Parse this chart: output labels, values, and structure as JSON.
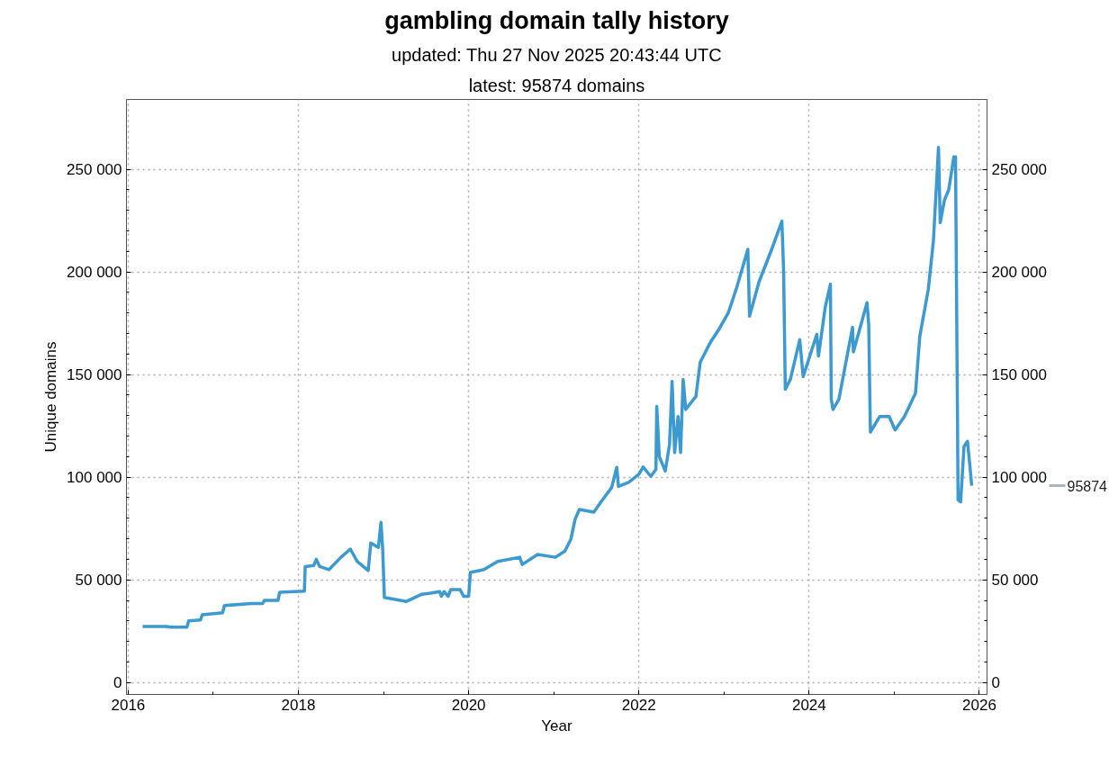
{
  "chart_data": {
    "type": "line",
    "title": "gambling domain tally history",
    "subtitle": "updated: Thu 27 Nov 2025 20:43:44 UTC",
    "xlabel": "Year",
    "ylabel": "Unique domains",
    "x": [
      2016.17,
      2016.45,
      2016.5,
      2016.69,
      2016.71,
      2016.85,
      2016.87,
      2017.11,
      2017.13,
      2017.45,
      2017.58,
      2017.6,
      2017.76,
      2017.78,
      2018.07,
      2018.08,
      2018.18,
      2018.21,
      2018.25,
      2018.36,
      2018.5,
      2018.61,
      2018.69,
      2018.82,
      2018.85,
      2018.94,
      2018.97,
      2018.99,
      2019.01,
      2019.27,
      2019.45,
      2019.55,
      2019.66,
      2019.68,
      2019.71,
      2019.76,
      2019.79,
      2019.9,
      2019.94,
      2020.0,
      2020.02,
      2020.18,
      2020.34,
      2020.6,
      2020.63,
      2020.81,
      2021.02,
      2021.13,
      2021.2,
      2021.25,
      2021.3,
      2021.47,
      2021.55,
      2021.68,
      2021.74,
      2021.76,
      2021.88,
      2022.0,
      2022.05,
      2022.14,
      2022.2,
      2022.21,
      2022.24,
      2022.31,
      2022.36,
      2022.39,
      2022.42,
      2022.46,
      2022.49,
      2022.52,
      2022.55,
      2022.67,
      2022.72,
      2022.84,
      2022.94,
      2023.05,
      2023.15,
      2023.28,
      2023.3,
      2023.41,
      2023.56,
      2023.68,
      2023.7,
      2023.72,
      2023.78,
      2023.89,
      2023.93,
      2024.09,
      2024.11,
      2024.19,
      2024.25,
      2024.26,
      2024.28,
      2024.35,
      2024.51,
      2024.52,
      2024.68,
      2024.7,
      2024.72,
      2024.83,
      2024.94,
      2025.01,
      2025.12,
      2025.25,
      2025.3,
      2025.4,
      2025.46,
      2025.52,
      2025.54,
      2025.59,
      2025.64,
      2025.7,
      2025.72,
      2025.75,
      2025.78,
      2025.82,
      2025.86,
      2025.89,
      2025.91
    ],
    "series": [
      {
        "color": "#3d9ad1",
        "values": [
          27300,
          27300,
          27000,
          27000,
          30000,
          30500,
          33000,
          34000,
          37500,
          38500,
          38500,
          40000,
          40000,
          44000,
          44500,
          56500,
          57000,
          60000,
          56500,
          55000,
          61000,
          65000,
          59000,
          54500,
          68000,
          65800,
          78000,
          65000,
          41400,
          39500,
          43000,
          43500,
          44300,
          42000,
          44300,
          42000,
          45300,
          45300,
          42000,
          42000,
          53600,
          55000,
          59000,
          61000,
          57500,
          62400,
          61000,
          64000,
          69700,
          79400,
          84300,
          83000,
          87700,
          95000,
          104800,
          95500,
          97500,
          101400,
          105000,
          100400,
          103800,
          134500,
          110000,
          103000,
          116000,
          146700,
          112000,
          129600,
          112000,
          147700,
          133000,
          139400,
          156000,
          165700,
          172000,
          180000,
          192500,
          211000,
          178400,
          195000,
          211000,
          224700,
          201000,
          142800,
          147700,
          167000,
          149000,
          169600,
          159000,
          183000,
          194000,
          138000,
          133000,
          138000,
          173000,
          161000,
          185000,
          174500,
          122000,
          129600,
          129600,
          123000,
          129600,
          141000,
          168600,
          191500,
          215000,
          260700,
          224000,
          235000,
          240000,
          256000,
          256000,
          89000,
          88000,
          115000,
          117500,
          105000,
          95874
        ]
      }
    ],
    "xlim": [
      2015.98,
      2026.09
    ],
    "xticks": [
      2016,
      2018,
      2020,
      2022,
      2024,
      2026
    ],
    "ylim": [
      -5800,
      284000
    ],
    "yticks": [
      {
        "value": 0,
        "label": "0"
      },
      {
        "value": 50000,
        "label": "50 000"
      },
      {
        "value": 100000,
        "label": "100 000"
      },
      {
        "value": 150000,
        "label": "150 000"
      },
      {
        "value": 200000,
        "label": "200 000"
      },
      {
        "value": 250000,
        "label": "250 000"
      }
    ],
    "y2lim": [
      -5800,
      284000
    ],
    "y2ticks": [
      {
        "value": 0,
        "label": "0"
      },
      {
        "value": 50000,
        "label": "50 000"
      },
      {
        "value": 100000,
        "label": "100 000"
      },
      {
        "value": 150000,
        "label": "150 000"
      },
      {
        "value": 200000,
        "label": "200 000"
      },
      {
        "value": 250000,
        "label": "250 000"
      }
    ],
    "annotations": [
      "latest: 95874 domains"
    ],
    "ref_lines": [
      {
        "axis": "y2",
        "value": 95874,
        "label": "95874",
        "color": "#aab4be"
      }
    ],
    "grid": true,
    "line_style": "solid",
    "marker": "none"
  }
}
